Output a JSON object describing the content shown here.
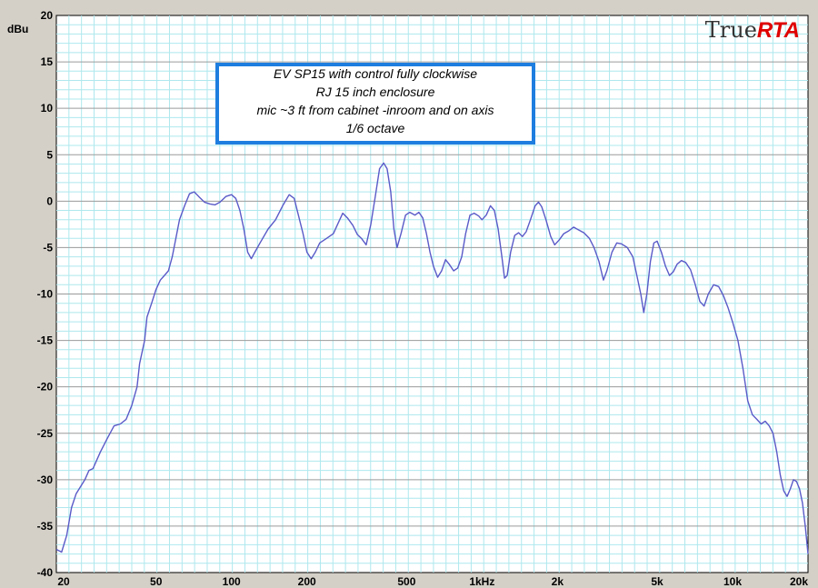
{
  "app": {
    "brand_prefix": "True",
    "brand_suffix": "RTA",
    "brand_colors": {
      "prefix": "#333333",
      "suffix": "#e00000"
    }
  },
  "chart_data": {
    "type": "line",
    "title": "",
    "ylabel": "dBu",
    "xlabel": "",
    "x_scale": "log",
    "xlim": [
      20,
      20000
    ],
    "ylim": [
      -40,
      20
    ],
    "grid": true,
    "x_ticks": [
      {
        "value": 20,
        "label": "20"
      },
      {
        "value": 50,
        "label": "50"
      },
      {
        "value": 100,
        "label": "100"
      },
      {
        "value": 200,
        "label": "200"
      },
      {
        "value": 500,
        "label": "500"
      },
      {
        "value": 1000,
        "label": "1kHz"
      },
      {
        "value": 2000,
        "label": "2k"
      },
      {
        "value": 5000,
        "label": "5k"
      },
      {
        "value": 10000,
        "label": "10k"
      },
      {
        "value": 20000,
        "label": "20k"
      }
    ],
    "y_ticks": [
      20,
      15,
      10,
      5,
      0,
      -5,
      -10,
      -15,
      -20,
      -25,
      -30,
      -35,
      -40
    ],
    "annotation": [
      "EV  SP15 with control fully clockwise",
      "RJ 15 inch enclosure",
      "mic ~3 ft from cabinet -inroom and on axis",
      "1/6 octave"
    ],
    "colors": {
      "background": "#ffffff",
      "grid_minor": "#aee8ee",
      "grid_major": "#9a9a9a",
      "line": "#5a5ac8",
      "annotation_border": "#1e7ee0"
    },
    "series": [
      {
        "name": "",
        "points": [
          [
            20,
            -37.5
          ],
          [
            21,
            -37.8
          ],
          [
            22,
            -36
          ],
          [
            23,
            -33
          ],
          [
            24,
            -31.5
          ],
          [
            26,
            -30
          ],
          [
            27,
            -29
          ],
          [
            28,
            -28.8
          ],
          [
            30,
            -27
          ],
          [
            32,
            -25.5
          ],
          [
            34,
            -24.2
          ],
          [
            36,
            -24
          ],
          [
            38,
            -23.5
          ],
          [
            40,
            -22
          ],
          [
            42,
            -20
          ],
          [
            43,
            -17.5
          ],
          [
            45,
            -15
          ],
          [
            46,
            -12.5
          ],
          [
            48,
            -11
          ],
          [
            50,
            -9.5
          ],
          [
            52,
            -8.5
          ],
          [
            54,
            -8
          ],
          [
            56,
            -7.5
          ],
          [
            58,
            -6
          ],
          [
            60,
            -4
          ],
          [
            62,
            -2
          ],
          [
            65,
            -0.5
          ],
          [
            68,
            0.8
          ],
          [
            71,
            1
          ],
          [
            74,
            0.5
          ],
          [
            78,
            -0.1
          ],
          [
            82,
            -0.3
          ],
          [
            86,
            -0.4
          ],
          [
            90,
            -0.1
          ],
          [
            95,
            0.5
          ],
          [
            100,
            0.7
          ],
          [
            104,
            0.3
          ],
          [
            108,
            -1
          ],
          [
            112,
            -3
          ],
          [
            116,
            -5.5
          ],
          [
            120,
            -6.2
          ],
          [
            124,
            -5.5
          ],
          [
            130,
            -4.5
          ],
          [
            140,
            -3
          ],
          [
            150,
            -2
          ],
          [
            160,
            -0.5
          ],
          [
            170,
            0.7
          ],
          [
            178,
            0.3
          ],
          [
            185,
            -1.5
          ],
          [
            193,
            -3.5
          ],
          [
            200,
            -5.5
          ],
          [
            208,
            -6.2
          ],
          [
            216,
            -5.5
          ],
          [
            225,
            -4.5
          ],
          [
            240,
            -4
          ],
          [
            255,
            -3.5
          ],
          [
            265,
            -2.5
          ],
          [
            278,
            -1.3
          ],
          [
            290,
            -1.8
          ],
          [
            305,
            -2.6
          ],
          [
            318,
            -3.6
          ],
          [
            330,
            -4
          ],
          [
            345,
            -4.7
          ],
          [
            360,
            -2.5
          ],
          [
            375,
            0.5
          ],
          [
            390,
            3.5
          ],
          [
            405,
            4.1
          ],
          [
            418,
            3.5
          ],
          [
            432,
            1
          ],
          [
            445,
            -3
          ],
          [
            458,
            -5
          ],
          [
            475,
            -3.5
          ],
          [
            495,
            -1.5
          ],
          [
            515,
            -1.2
          ],
          [
            540,
            -1.5
          ],
          [
            560,
            -1.2
          ],
          [
            580,
            -1.8
          ],
          [
            600,
            -3.5
          ],
          [
            620,
            -5.5
          ],
          [
            640,
            -7
          ],
          [
            665,
            -8.2
          ],
          [
            690,
            -7.5
          ],
          [
            715,
            -6.3
          ],
          [
            740,
            -6.8
          ],
          [
            770,
            -7.5
          ],
          [
            800,
            -7.2
          ],
          [
            830,
            -6
          ],
          [
            860,
            -3.5
          ],
          [
            895,
            -1.5
          ],
          [
            930,
            -1.3
          ],
          [
            970,
            -1.6
          ],
          [
            1000,
            -2
          ],
          [
            1040,
            -1.5
          ],
          [
            1080,
            -0.5
          ],
          [
            1120,
            -1
          ],
          [
            1160,
            -3
          ],
          [
            1200,
            -6
          ],
          [
            1230,
            -8.3
          ],
          [
            1260,
            -8
          ],
          [
            1300,
            -5.5
          ],
          [
            1350,
            -3.7
          ],
          [
            1400,
            -3.4
          ],
          [
            1450,
            -3.8
          ],
          [
            1500,
            -3.3
          ],
          [
            1560,
            -2
          ],
          [
            1630,
            -0.5
          ],
          [
            1680,
            -0.1
          ],
          [
            1730,
            -0.6
          ],
          [
            1800,
            -2
          ],
          [
            1880,
            -3.8
          ],
          [
            1950,
            -4.7
          ],
          [
            2030,
            -4.2
          ],
          [
            2120,
            -3.5
          ],
          [
            2220,
            -3.2
          ],
          [
            2320,
            -2.8
          ],
          [
            2430,
            -3.1
          ],
          [
            2550,
            -3.4
          ],
          [
            2680,
            -4
          ],
          [
            2800,
            -5
          ],
          [
            2930,
            -6.5
          ],
          [
            3050,
            -8.5
          ],
          [
            3150,
            -7.5
          ],
          [
            3300,
            -5.5
          ],
          [
            3450,
            -4.5
          ],
          [
            3600,
            -4.6
          ],
          [
            3800,
            -5
          ],
          [
            4000,
            -6
          ],
          [
            4150,
            -8
          ],
          [
            4300,
            -10
          ],
          [
            4420,
            -12
          ],
          [
            4550,
            -10
          ],
          [
            4700,
            -6.5
          ],
          [
            4850,
            -4.5
          ],
          [
            5000,
            -4.3
          ],
          [
            5200,
            -5.5
          ],
          [
            5400,
            -7
          ],
          [
            5600,
            -8
          ],
          [
            5800,
            -7.6
          ],
          [
            6000,
            -6.8
          ],
          [
            6250,
            -6.4
          ],
          [
            6500,
            -6.6
          ],
          [
            6800,
            -7.4
          ],
          [
            7100,
            -9
          ],
          [
            7400,
            -10.8
          ],
          [
            7700,
            -11.3
          ],
          [
            8000,
            -10
          ],
          [
            8400,
            -9
          ],
          [
            8800,
            -9.2
          ],
          [
            9200,
            -10.2
          ],
          [
            9600,
            -11.5
          ],
          [
            10000,
            -13
          ],
          [
            10500,
            -15
          ],
          [
            11000,
            -18
          ],
          [
            11500,
            -21.5
          ],
          [
            12000,
            -23
          ],
          [
            12500,
            -23.5
          ],
          [
            13000,
            -24
          ],
          [
            13500,
            -23.7
          ],
          [
            14000,
            -24.2
          ],
          [
            14500,
            -25
          ],
          [
            15000,
            -27
          ],
          [
            15500,
            -29.5
          ],
          [
            16000,
            -31.2
          ],
          [
            16500,
            -31.8
          ],
          [
            17000,
            -31
          ],
          [
            17500,
            -30
          ],
          [
            18000,
            -30.2
          ],
          [
            18500,
            -31
          ],
          [
            19000,
            -32.5
          ],
          [
            19500,
            -35
          ],
          [
            20000,
            -38
          ]
        ]
      }
    ]
  }
}
